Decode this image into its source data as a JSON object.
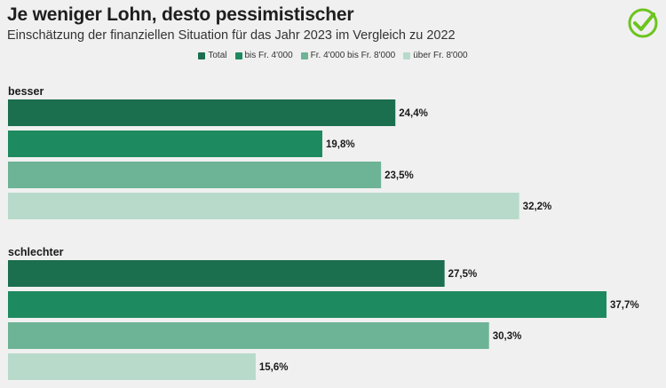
{
  "title": "Je weniger Lohn, desto pessimistischer",
  "subtitle": "Einschätzung der finanziellen Situation für das Jahr 2023 im Vergleich zu 2022",
  "logo_icon": "checkmark-circle-icon",
  "colors": {
    "accent": "#6cc41e",
    "background": "#f0f0f0"
  },
  "chart_data": {
    "type": "bar",
    "orientation": "horizontal",
    "categories": [
      "besser",
      "schlechter"
    ],
    "series": [
      {
        "name": "Total",
        "color": "#1b6e4e",
        "values": [
          24.4,
          27.5
        ],
        "labels": [
          "24,4%",
          "27,5%"
        ]
      },
      {
        "name": "bis Fr. 4'000",
        "color": "#1e8a5f",
        "values": [
          19.8,
          37.7
        ],
        "labels": [
          "19,8%",
          "37,7%"
        ]
      },
      {
        "name": "Fr. 4'000 bis Fr. 8'000",
        "color": "#6db396",
        "values": [
          23.5,
          30.3
        ],
        "labels": [
          "23,5%",
          "30,3%"
        ]
      },
      {
        "name": "über Fr. 8'000",
        "color": "#b7dacb",
        "values": [
          32.2,
          15.6
        ],
        "labels": [
          "32,2%",
          "15,6%"
        ]
      }
    ],
    "xlim": [
      0,
      41
    ],
    "legend_position": "top-center",
    "grid": false
  }
}
